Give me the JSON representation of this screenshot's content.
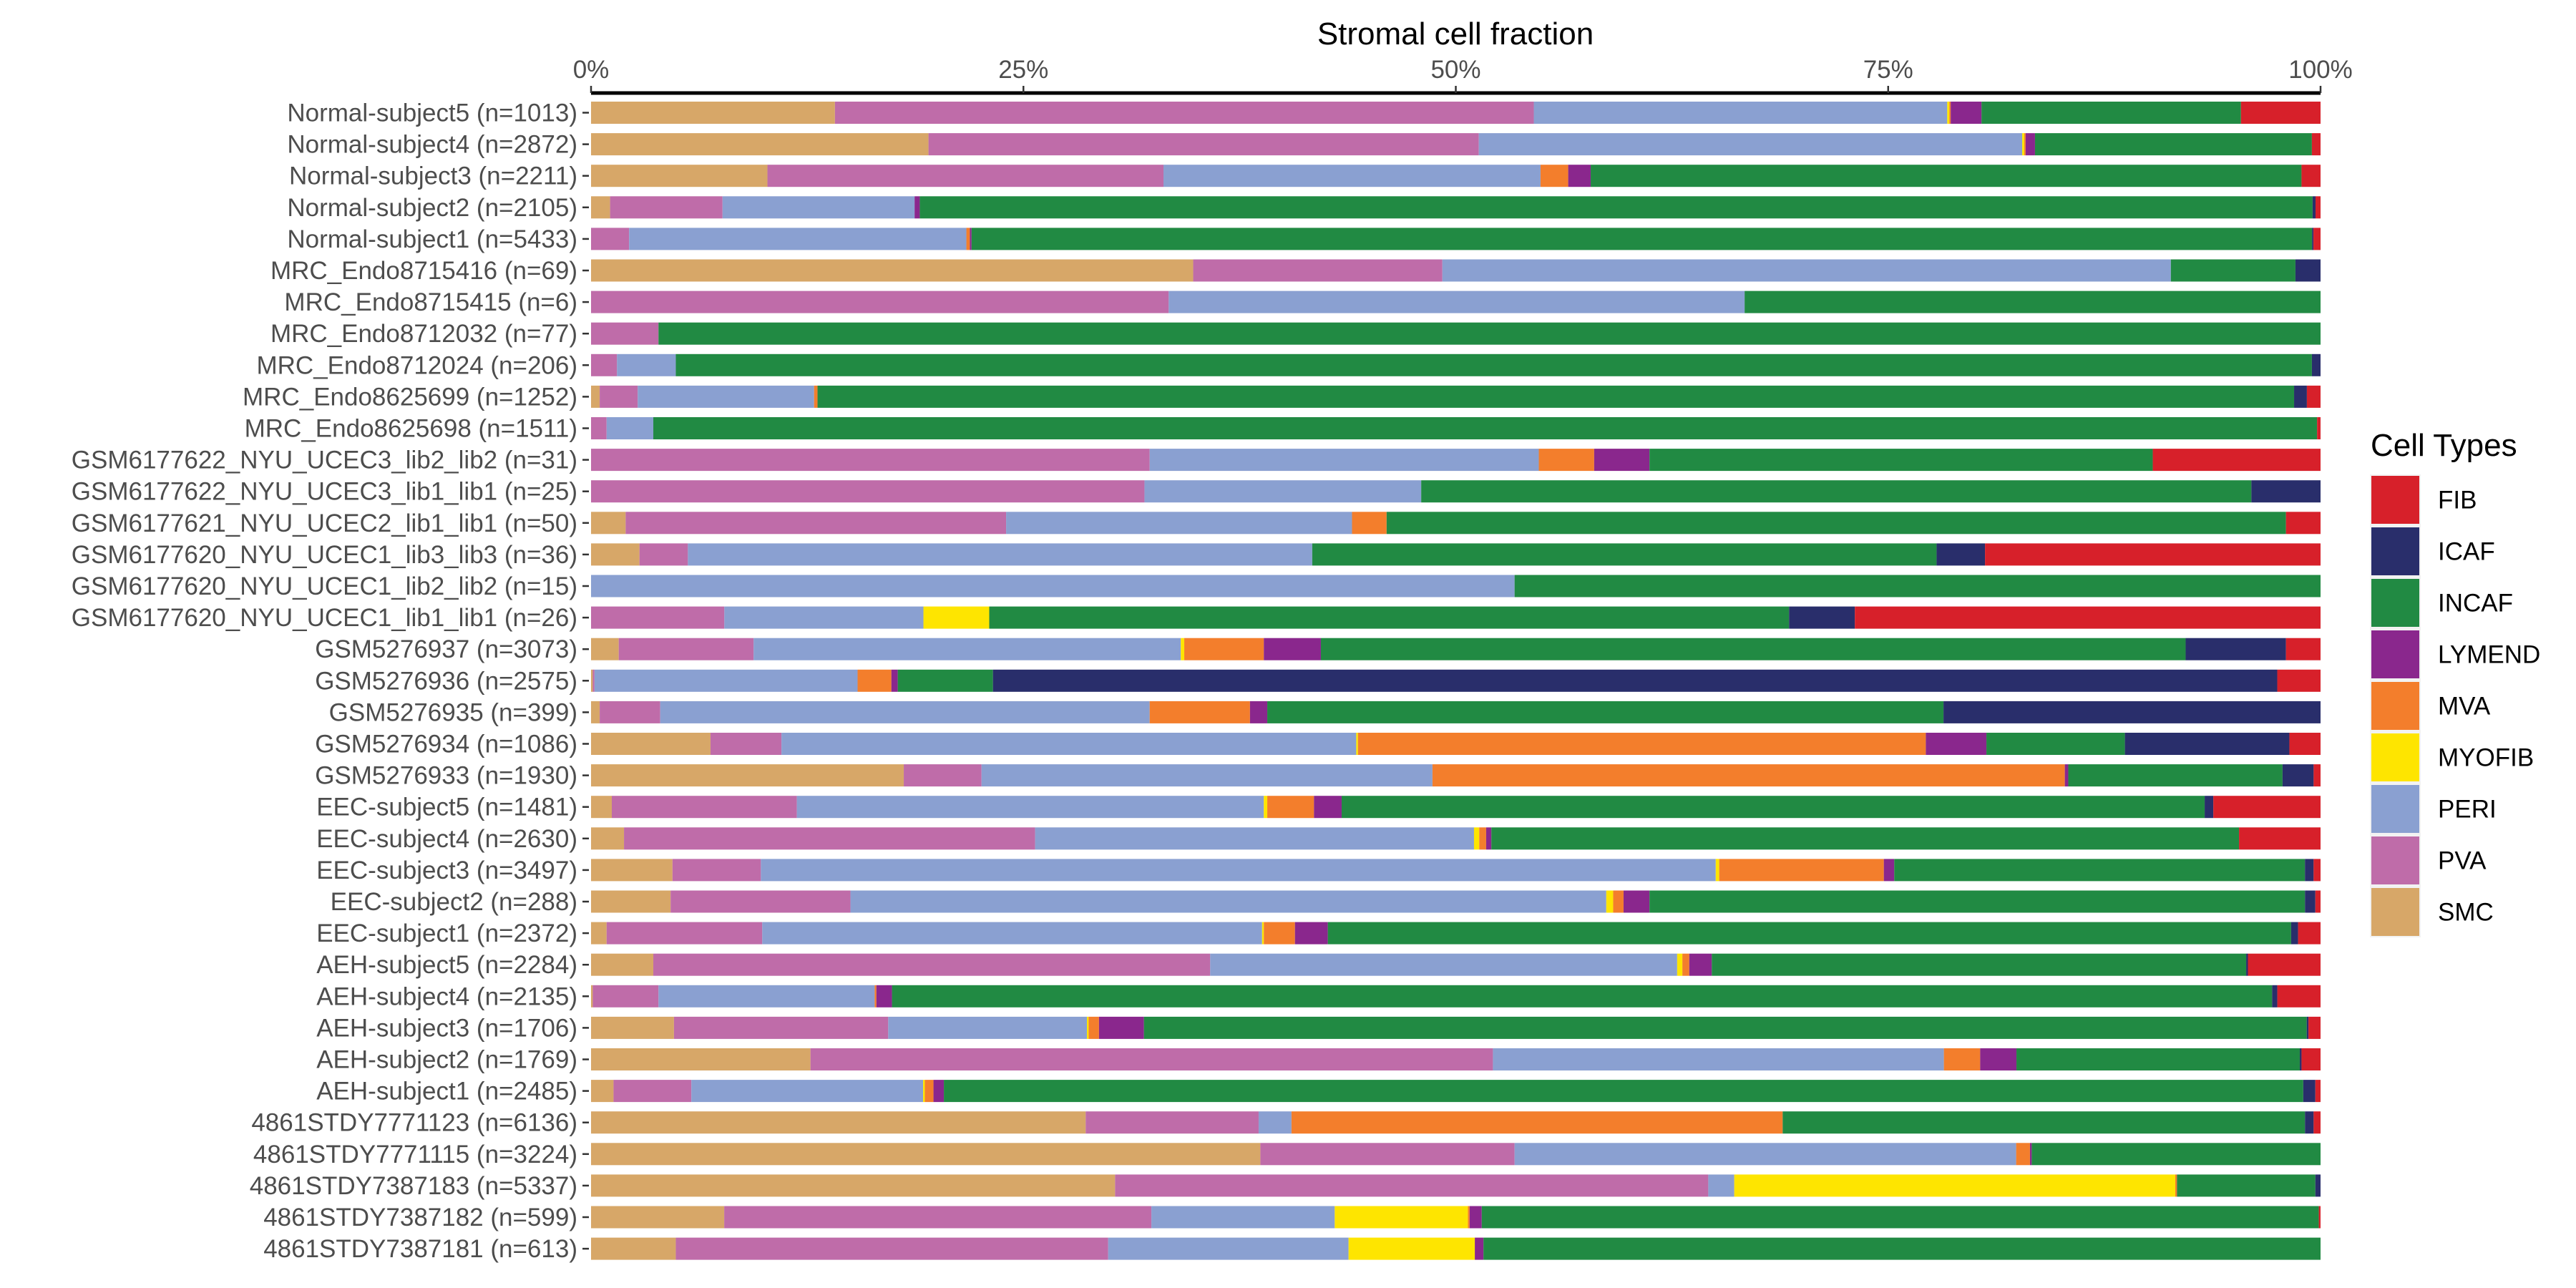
{
  "chart_data": {
    "type": "bar",
    "orientation": "horizontal",
    "stacked": "percent",
    "title": "",
    "xlabel": "Stromal cell fraction",
    "xlabel_position": "top",
    "ylabel": "",
    "xlim": [
      0,
      100
    ],
    "x_ticks": [
      0,
      25,
      50,
      75,
      100
    ],
    "x_tick_labels": [
      "0%",
      "25%",
      "50%",
      "75%",
      "100%"
    ],
    "grid": false,
    "legend": {
      "title": "Cell Types",
      "placement": "right",
      "entries": [
        "FIB",
        "ICAF",
        "INCAF",
        "LYMEND",
        "MVA",
        "MYOFIB",
        "PERI",
        "PVA",
        "SMC"
      ]
    },
    "colors": {
      "FIB": "#D7202A",
      "ICAF": "#292E6B",
      "INCAF": "#218A43",
      "LYMEND": "#8A278D",
      "MVA": "#F37E2C",
      "MYOFIB": "#FEE500",
      "PERI": "#8AA0D1",
      "PVA": "#BF6CA9",
      "SMC": "#D7A768"
    },
    "stack_order": [
      "SMC",
      "PVA",
      "PERI",
      "MYOFIB",
      "MVA",
      "LYMEND",
      "INCAF",
      "ICAF",
      "FIB"
    ],
    "categories": [
      "Normal-subject5 (n=1013)",
      "Normal-subject4 (n=2872)",
      "Normal-subject3 (n=2211)",
      "Normal-subject2 (n=2105)",
      "Normal-subject1 (n=5433)",
      "MRC_Endo8715416 (n=69)",
      "MRC_Endo8715415 (n=6)",
      "MRC_Endo8712032 (n=77)",
      "MRC_Endo8712024 (n=206)",
      "MRC_Endo8625699 (n=1252)",
      "MRC_Endo8625698 (n=1511)",
      "GSM6177622_NYU_UCEC3_lib2_lib2 (n=31)",
      "GSM6177622_NYU_UCEC3_lib1_lib1 (n=25)",
      "GSM6177621_NYU_UCEC2_lib1_lib1 (n=50)",
      "GSM6177620_NYU_UCEC1_lib3_lib3 (n=36)",
      "GSM6177620_NYU_UCEC1_lib2_lib2 (n=15)",
      "GSM6177620_NYU_UCEC1_lib1_lib1 (n=26)",
      "GSM5276937 (n=3073)",
      "GSM5276936 (n=2575)",
      "GSM5276935 (n=399)",
      "GSM5276934 (n=1086)",
      "GSM5276933 (n=1930)",
      "EEC-subject5 (n=1481)",
      "EEC-subject4 (n=2630)",
      "EEC-subject3 (n=3497)",
      "EEC-subject2 (n=288)",
      "EEC-subject1 (n=2372)",
      "AEH-subject5 (n=2284)",
      "AEH-subject4 (n=2135)",
      "AEH-subject3 (n=1706)",
      "AEH-subject2 (n=1769)",
      "AEH-subject1 (n=2485)",
      "4861STDY7771123 (n=6136)",
      "4861STDY7771115 (n=3224)",
      "4861STDY7387183 (n=5337)",
      "4861STDY7387182 (n=599)",
      "4861STDY7387181 (n=613)"
    ],
    "series": [
      {
        "name": "SMC",
        "values": [
          14.1,
          19.5,
          10.2,
          1.1,
          0,
          34.8,
          0,
          0,
          0,
          0.5,
          0,
          0,
          0,
          2.0,
          2.8,
          0,
          0,
          1.6,
          0.1,
          0.5,
          6.9,
          18.1,
          1.2,
          1.9,
          4.7,
          4.6,
          0.9,
          3.6,
          0.1,
          4.8,
          12.7,
          1.3,
          28.6,
          38.7,
          30.3,
          7.7,
          4.9
        ]
      },
      {
        "name": "PVA",
        "values": [
          40.4,
          31.8,
          22.9,
          6.5,
          2.2,
          14.4,
          33.4,
          3.9,
          1.5,
          2.2,
          0.9,
          32.3,
          32.0,
          22.0,
          2.8,
          0,
          7.7,
          7.8,
          0.1,
          3.5,
          4.1,
          4.5,
          10.7,
          23.7,
          5.1,
          10.4,
          9.0,
          32.2,
          3.8,
          12.4,
          39.5,
          4.5,
          10.0,
          14.7,
          34.3,
          24.7,
          25.0
        ]
      },
      {
        "name": "PERI",
        "values": [
          23.9,
          31.4,
          21.8,
          11.1,
          19.5,
          42.1,
          33.3,
          0,
          3.4,
          10.2,
          2.7,
          22.5,
          16.0,
          20.0,
          36.1,
          53.4,
          11.5,
          24.7,
          15.2,
          28.3,
          33.2,
          26.1,
          27.0,
          25.3,
          55.1,
          43.7,
          28.9,
          27.0,
          12.5,
          11.5,
          26.1,
          13.4,
          1.9,
          29.0,
          1.5,
          10.6,
          13.9
        ]
      },
      {
        "name": "MYOFIB",
        "values": [
          0.12,
          0.12,
          0,
          0,
          0,
          0,
          0,
          0,
          0,
          0,
          0,
          0,
          0,
          0,
          0,
          0,
          3.8,
          0.2,
          0,
          0,
          0.1,
          0,
          0.2,
          0.3,
          0.2,
          0.4,
          0.1,
          0.3,
          0,
          0.1,
          0,
          0.1,
          0,
          0,
          25.5,
          7.7,
          7.3
        ]
      },
      {
        "name": "MVA",
        "values": [
          0.08,
          0.08,
          1.6,
          0,
          0.2,
          0,
          0,
          0,
          0,
          0.2,
          0,
          3.2,
          0,
          2.0,
          0,
          0,
          0,
          4.6,
          1.95,
          5.8,
          32.8,
          36.6,
          2.7,
          0.4,
          9.5,
          0.6,
          1.8,
          0.4,
          0.1,
          0.6,
          2.1,
          0.5,
          28.4,
          0.8,
          0.1,
          0.1,
          0
        ]
      },
      {
        "name": "LYMEND",
        "values": [
          1.78,
          0.54,
          1.3,
          0.3,
          0.1,
          0,
          0,
          0,
          0,
          0,
          0,
          3.2,
          0,
          0,
          0,
          0,
          0,
          3.3,
          0.37,
          1.0,
          3.5,
          0.2,
          1.6,
          0.3,
          0.6,
          1.5,
          1.9,
          1.3,
          0.9,
          2.6,
          2.1,
          0.6,
          0,
          0.1,
          0,
          0.7,
          0.5
        ]
      },
      {
        "name": "INCAF",
        "values": [
          15.0,
          16.0,
          41.1,
          80.5,
          77.5,
          7.2,
          33.3,
          96.1,
          94.6,
          85.4,
          96.2,
          29.1,
          48.0,
          52.0,
          36.1,
          46.6,
          46.2,
          50.0,
          5.5,
          39.1,
          8.0,
          12.4,
          49.9,
          43.1,
          23.7,
          37.9,
          55.7,
          30.9,
          79.8,
          67.3,
          16.4,
          78.6,
          30.2,
          16.7,
          8.0,
          48.4,
          48.4
        ]
      },
      {
        "name": "ICAF",
        "values": [
          0,
          0,
          0,
          0.17,
          0.08,
          1.45,
          0,
          0,
          0.5,
          0.74,
          0,
          0,
          4.0,
          0,
          2.8,
          0,
          3.8,
          5.8,
          74.2,
          21.8,
          9.5,
          1.8,
          0.5,
          0,
          0.5,
          0.6,
          0.4,
          0.1,
          0.3,
          0.1,
          0.1,
          0.7,
          0.5,
          0,
          0.3,
          0,
          0
        ]
      },
      {
        "name": "FIB",
        "values": [
          4.6,
          0.5,
          1.1,
          0.29,
          0.41,
          0,
          0,
          0,
          0,
          0.79,
          0.2,
          9.7,
          0,
          2.0,
          19.4,
          0,
          26.9,
          2.0,
          2.5,
          0,
          1.8,
          0.4,
          6.2,
          4.7,
          0.4,
          0.3,
          1.3,
          4.2,
          2.5,
          0.7,
          1.1,
          0.3,
          0.4,
          0,
          0,
          0.1,
          0
        ]
      }
    ]
  }
}
